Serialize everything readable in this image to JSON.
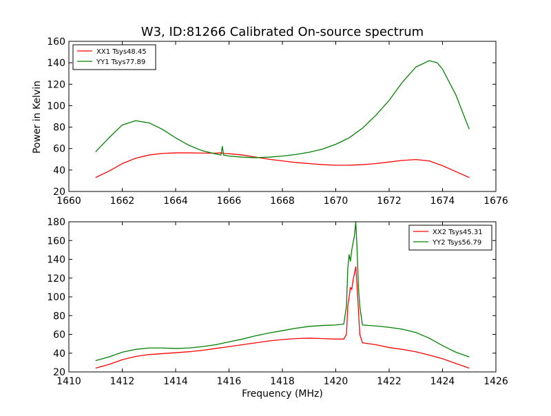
{
  "figure": {
    "title": "W3, ID:81266 Calibrated On-source spectrum",
    "xlabel": "Frequency (MHz)",
    "ylabel": "Power in Kelvin"
  },
  "colors": {
    "xx": "#ff0000",
    "yy": "#008000"
  },
  "chart_data": [
    {
      "type": "line",
      "panel": "top",
      "title": "W3, ID:81266 Calibrated On-source spectrum",
      "xlabel": "",
      "ylabel": "Power in Kelvin",
      "xlim": [
        1660,
        1676
      ],
      "ylim": [
        20,
        160
      ],
      "xticks": [
        1660,
        1662,
        1664,
        1666,
        1668,
        1670,
        1672,
        1674,
        1676
      ],
      "yticks": [
        20,
        40,
        60,
        80,
        100,
        120,
        140,
        160
      ],
      "grid": false,
      "legend_position": "top-left",
      "series": [
        {
          "name": "XX1 Tsys48.45",
          "color": "#ff0000",
          "x": [
            1661.0,
            1661.5,
            1662.0,
            1662.5,
            1663.0,
            1663.5,
            1664.0,
            1664.5,
            1665.0,
            1665.5,
            1665.7,
            1665.8,
            1665.9,
            1666.0,
            1666.5,
            1667.0,
            1667.5,
            1668.0,
            1668.5,
            1669.0,
            1669.5,
            1670.0,
            1670.5,
            1671.0,
            1671.5,
            1672.0,
            1672.5,
            1673.0,
            1673.5,
            1674.0,
            1674.5,
            1675.0
          ],
          "y": [
            33,
            39,
            46,
            51,
            54,
            55.5,
            56,
            56,
            55.8,
            55.7,
            56,
            55.5,
            55.4,
            55.2,
            54,
            52,
            50,
            48.5,
            47,
            46,
            45,
            44.5,
            44.5,
            45,
            46,
            47.5,
            49,
            49.8,
            48.5,
            44,
            38.5,
            33
          ]
        },
        {
          "name": "YY1 Tsys77.89",
          "color": "#008000",
          "x": [
            1661.0,
            1661.5,
            1662.0,
            1662.5,
            1663.0,
            1663.5,
            1664.0,
            1664.5,
            1665.0,
            1665.5,
            1665.7,
            1665.75,
            1665.8,
            1665.9,
            1666.0,
            1666.5,
            1667.0,
            1667.5,
            1668.0,
            1668.5,
            1669.0,
            1669.5,
            1670.0,
            1670.5,
            1671.0,
            1671.5,
            1672.0,
            1672.5,
            1673.0,
            1673.5,
            1673.8,
            1674.0,
            1674.5,
            1675.0
          ],
          "y": [
            57,
            70,
            82,
            86,
            84,
            78,
            70,
            63,
            58,
            55,
            54,
            62,
            54,
            53.5,
            53,
            52,
            51.5,
            52,
            53,
            54.5,
            56.5,
            59.5,
            64,
            70,
            79,
            91,
            105,
            122,
            136,
            142,
            140,
            134,
            110,
            78
          ]
        }
      ]
    },
    {
      "type": "line",
      "panel": "bottom",
      "title": "",
      "xlabel": "Frequency (MHz)",
      "ylabel": "",
      "xlim": [
        1410,
        1426
      ],
      "ylim": [
        20,
        180
      ],
      "xticks": [
        1410,
        1412,
        1414,
        1416,
        1418,
        1420,
        1422,
        1424,
        1426
      ],
      "yticks": [
        20,
        40,
        60,
        80,
        100,
        120,
        140,
        160,
        180
      ],
      "grid": false,
      "legend_position": "top-right",
      "series": [
        {
          "name": "XX2 Tsys45.31",
          "color": "#ff0000",
          "x": [
            1411.0,
            1411.5,
            1412.0,
            1412.5,
            1413.0,
            1413.5,
            1414.0,
            1414.5,
            1415.0,
            1415.5,
            1416.0,
            1416.5,
            1417.0,
            1417.5,
            1418.0,
            1418.5,
            1419.0,
            1419.5,
            1420.0,
            1420.3,
            1420.4,
            1420.45,
            1420.5,
            1420.55,
            1420.6,
            1420.65,
            1420.7,
            1420.75,
            1420.8,
            1420.85,
            1420.9,
            1421.0,
            1421.5,
            1422.0,
            1422.5,
            1423.0,
            1423.5,
            1424.0,
            1424.5,
            1425.0
          ],
          "y": [
            24,
            28,
            33,
            36.5,
            38.5,
            39.5,
            40.5,
            41.5,
            43,
            45,
            47,
            49,
            51,
            53,
            54.5,
            55.5,
            56,
            55.5,
            55,
            55,
            60,
            90,
            100,
            110,
            108,
            118,
            125,
            132,
            110,
            85,
            60,
            51,
            49,
            46,
            44,
            41.5,
            38,
            34,
            29,
            24
          ]
        },
        {
          "name": "YY2 Tsys56.79",
          "color": "#008000",
          "x": [
            1411.0,
            1411.5,
            1412.0,
            1412.5,
            1413.0,
            1413.5,
            1414.0,
            1414.5,
            1415.0,
            1415.5,
            1416.0,
            1416.5,
            1417.0,
            1417.5,
            1418.0,
            1418.5,
            1419.0,
            1419.5,
            1420.0,
            1420.3,
            1420.4,
            1420.45,
            1420.5,
            1420.55,
            1420.6,
            1420.65,
            1420.7,
            1420.75,
            1420.8,
            1420.85,
            1420.9,
            1421.0,
            1421.5,
            1422.0,
            1422.5,
            1423.0,
            1423.5,
            1424.0,
            1424.5,
            1425.0
          ],
          "y": [
            32,
            36,
            41,
            44,
            45.5,
            45.5,
            45,
            45.5,
            47,
            49,
            52,
            55,
            58.5,
            61.5,
            64,
            66.5,
            68.5,
            69.5,
            70,
            71,
            90,
            130,
            145,
            138,
            150,
            158,
            165,
            180,
            150,
            110,
            90,
            70,
            69,
            67.5,
            65.5,
            62,
            56,
            48,
            41,
            36
          ]
        }
      ]
    }
  ]
}
